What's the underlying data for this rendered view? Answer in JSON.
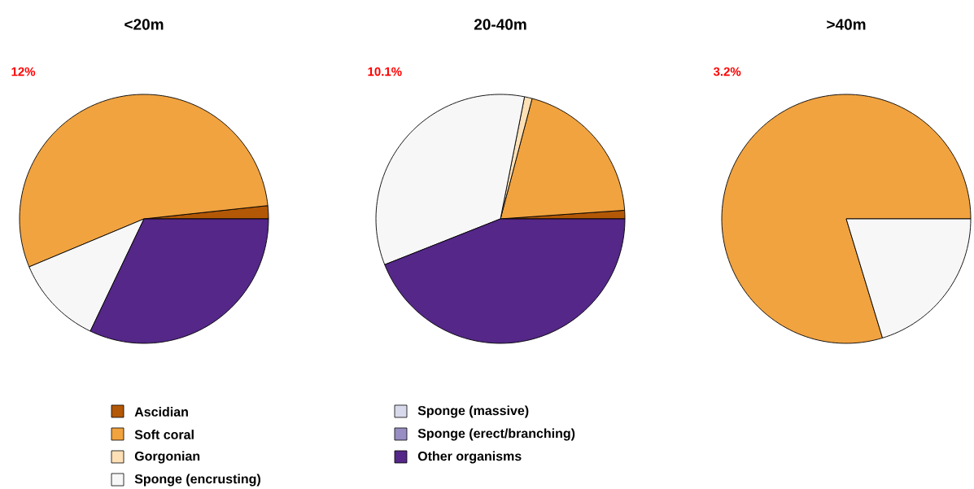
{
  "chart_data": [
    {
      "type": "pie",
      "title": "<20m",
      "annotations": [
        "12%"
      ],
      "legend": "bottom",
      "categories": [
        "Ascidian",
        "Soft coral",
        "Gorgonian",
        "Sponge (encrusting)",
        "Sponge (massive)",
        "Sponge (erect/branching)",
        "Other organisms"
      ],
      "values": [
        1.7,
        54.6,
        0,
        11.6,
        0,
        0,
        32.1
      ],
      "colors": [
        "#b35806",
        "#f1a340",
        "#fee0b6",
        "#f7f7f7",
        "#d8daeb",
        "#998ec3",
        "#542788"
      ]
    },
    {
      "type": "pie",
      "title": "20-40m",
      "annotations": [
        "10.1%"
      ],
      "values": [
        1.1,
        19.8,
        1.0,
        34.1,
        0,
        0,
        44.0
      ],
      "colors": [
        "#b35806",
        "#f1a340",
        "#fee0b6",
        "#f7f7f7",
        "#d8daeb",
        "#998ec3",
        "#542788"
      ]
    },
    {
      "type": "pie",
      "title": ">40m",
      "annotations": [
        "3.2%"
      ],
      "values": [
        0,
        79.7,
        0,
        20.3,
        0,
        0,
        0
      ],
      "colors": [
        "#b35806",
        "#f1a340",
        "#fee0b6",
        "#f7f7f7",
        "#d8daeb",
        "#998ec3",
        "#542788"
      ]
    }
  ]
}
